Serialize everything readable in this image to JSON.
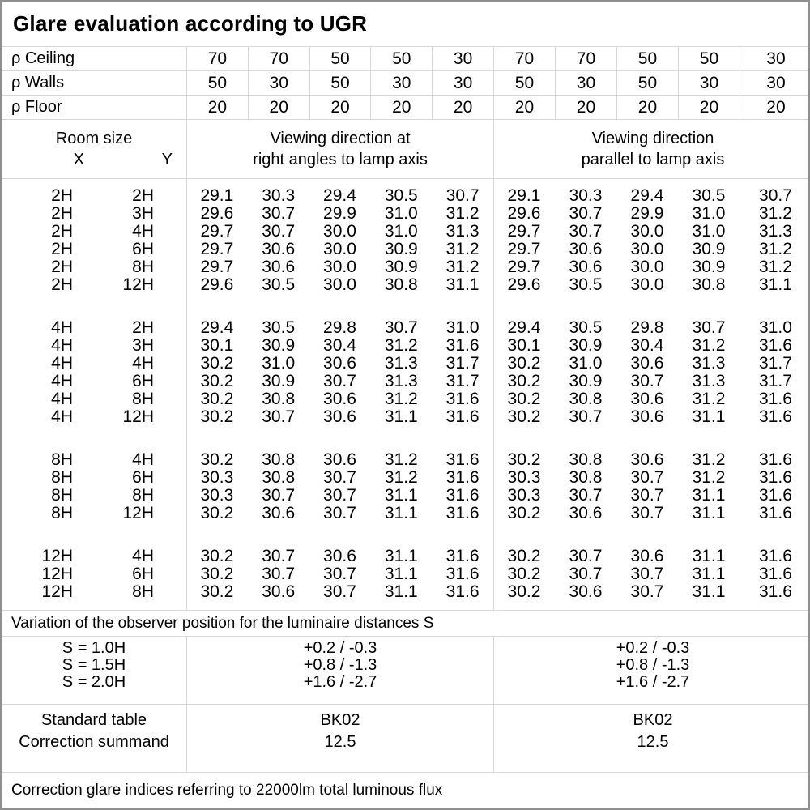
{
  "title": "Glare evaluation according to UGR",
  "colors": {
    "grid_line": "#d8d8d8",
    "outer_border": "#8f8f8f",
    "text": "#000000",
    "background": "#ffffff"
  },
  "reflectance_rows": [
    {
      "label": "ρ Ceiling",
      "values": [
        "70",
        "70",
        "50",
        "50",
        "30",
        "70",
        "70",
        "50",
        "50",
        "30"
      ]
    },
    {
      "label": "ρ Walls",
      "values": [
        "50",
        "30",
        "50",
        "30",
        "30",
        "50",
        "30",
        "50",
        "30",
        "30"
      ]
    },
    {
      "label": "ρ Floor",
      "values": [
        "20",
        "20",
        "20",
        "20",
        "20",
        "20",
        "20",
        "20",
        "20",
        "20"
      ]
    }
  ],
  "header": {
    "room_size": "Room size",
    "x": "X",
    "y": "Y",
    "left_group_line1": "Viewing direction at",
    "left_group_line2": "right angles to lamp axis",
    "right_group_line1": "Viewing direction",
    "right_group_line2": "parallel to lamp axis"
  },
  "ugr_table": {
    "groups": [
      {
        "rows": [
          {
            "x": "2H",
            "y": "2H",
            "left": [
              "29.1",
              "30.3",
              "29.4",
              "30.5",
              "30.7"
            ],
            "right": [
              "29.1",
              "30.3",
              "29.4",
              "30.5",
              "30.7"
            ]
          },
          {
            "x": "2H",
            "y": "3H",
            "left": [
              "29.6",
              "30.7",
              "29.9",
              "31.0",
              "31.2"
            ],
            "right": [
              "29.6",
              "30.7",
              "29.9",
              "31.0",
              "31.2"
            ]
          },
          {
            "x": "2H",
            "y": "4H",
            "left": [
              "29.7",
              "30.7",
              "30.0",
              "31.0",
              "31.3"
            ],
            "right": [
              "29.7",
              "30.7",
              "30.0",
              "31.0",
              "31.3"
            ]
          },
          {
            "x": "2H",
            "y": "6H",
            "left": [
              "29.7",
              "30.6",
              "30.0",
              "30.9",
              "31.2"
            ],
            "right": [
              "29.7",
              "30.6",
              "30.0",
              "30.9",
              "31.2"
            ]
          },
          {
            "x": "2H",
            "y": "8H",
            "left": [
              "29.7",
              "30.6",
              "30.0",
              "30.9",
              "31.2"
            ],
            "right": [
              "29.7",
              "30.6",
              "30.0",
              "30.9",
              "31.2"
            ]
          },
          {
            "x": "2H",
            "y": "12H",
            "left": [
              "29.6",
              "30.5",
              "30.0",
              "30.8",
              "31.1"
            ],
            "right": [
              "29.6",
              "30.5",
              "30.0",
              "30.8",
              "31.1"
            ]
          }
        ]
      },
      {
        "rows": [
          {
            "x": "4H",
            "y": "2H",
            "left": [
              "29.4",
              "30.5",
              "29.8",
              "30.7",
              "31.0"
            ],
            "right": [
              "29.4",
              "30.5",
              "29.8",
              "30.7",
              "31.0"
            ]
          },
          {
            "x": "4H",
            "y": "3H",
            "left": [
              "30.1",
              "30.9",
              "30.4",
              "31.2",
              "31.6"
            ],
            "right": [
              "30.1",
              "30.9",
              "30.4",
              "31.2",
              "31.6"
            ]
          },
          {
            "x": "4H",
            "y": "4H",
            "left": [
              "30.2",
              "31.0",
              "30.6",
              "31.3",
              "31.7"
            ],
            "right": [
              "30.2",
              "31.0",
              "30.6",
              "31.3",
              "31.7"
            ]
          },
          {
            "x": "4H",
            "y": "6H",
            "left": [
              "30.2",
              "30.9",
              "30.7",
              "31.3",
              "31.7"
            ],
            "right": [
              "30.2",
              "30.9",
              "30.7",
              "31.3",
              "31.7"
            ]
          },
          {
            "x": "4H",
            "y": "8H",
            "left": [
              "30.2",
              "30.8",
              "30.6",
              "31.2",
              "31.6"
            ],
            "right": [
              "30.2",
              "30.8",
              "30.6",
              "31.2",
              "31.6"
            ]
          },
          {
            "x": "4H",
            "y": "12H",
            "left": [
              "30.2",
              "30.7",
              "30.6",
              "31.1",
              "31.6"
            ],
            "right": [
              "30.2",
              "30.7",
              "30.6",
              "31.1",
              "31.6"
            ]
          }
        ]
      },
      {
        "rows": [
          {
            "x": "8H",
            "y": "4H",
            "left": [
              "30.2",
              "30.8",
              "30.6",
              "31.2",
              "31.6"
            ],
            "right": [
              "30.2",
              "30.8",
              "30.6",
              "31.2",
              "31.6"
            ]
          },
          {
            "x": "8H",
            "y": "6H",
            "left": [
              "30.3",
              "30.8",
              "30.7",
              "31.2",
              "31.6"
            ],
            "right": [
              "30.3",
              "30.8",
              "30.7",
              "31.2",
              "31.6"
            ]
          },
          {
            "x": "8H",
            "y": "8H",
            "left": [
              "30.3",
              "30.7",
              "30.7",
              "31.1",
              "31.6"
            ],
            "right": [
              "30.3",
              "30.7",
              "30.7",
              "31.1",
              "31.6"
            ]
          },
          {
            "x": "8H",
            "y": "12H",
            "left": [
              "30.2",
              "30.6",
              "30.7",
              "31.1",
              "31.6"
            ],
            "right": [
              "30.2",
              "30.6",
              "30.7",
              "31.1",
              "31.6"
            ]
          }
        ]
      },
      {
        "rows": [
          {
            "x": "12H",
            "y": "4H",
            "left": [
              "30.2",
              "30.7",
              "30.6",
              "31.1",
              "31.6"
            ],
            "right": [
              "30.2",
              "30.7",
              "30.6",
              "31.1",
              "31.6"
            ]
          },
          {
            "x": "12H",
            "y": "6H",
            "left": [
              "30.2",
              "30.7",
              "30.7",
              "31.1",
              "31.6"
            ],
            "right": [
              "30.2",
              "30.7",
              "30.7",
              "31.1",
              "31.6"
            ]
          },
          {
            "x": "12H",
            "y": "8H",
            "left": [
              "30.2",
              "30.6",
              "30.7",
              "31.1",
              "31.6"
            ],
            "right": [
              "30.2",
              "30.6",
              "30.7",
              "31.1",
              "31.6"
            ]
          }
        ]
      }
    ]
  },
  "variation_note": "Variation of the observer position for the luminaire distances S",
  "observer_variation": {
    "labels": [
      "S = 1.0H",
      "S = 1.5H",
      "S = 2.0H"
    ],
    "left_values": [
      "+0.2 / -0.3",
      "+0.8 / -1.3",
      "+1.6 / -2.7"
    ],
    "right_values": [
      "+0.2 / -0.3",
      "+0.8 / -1.3",
      "+1.6 / -2.7"
    ]
  },
  "correction": {
    "labels": [
      "Standard table",
      "Correction summand"
    ],
    "left_values": [
      "BK02",
      "12.5"
    ],
    "right_values": [
      "BK02",
      "12.5"
    ]
  },
  "footer_note": "Correction glare indices referring to 22000lm total luminous flux"
}
